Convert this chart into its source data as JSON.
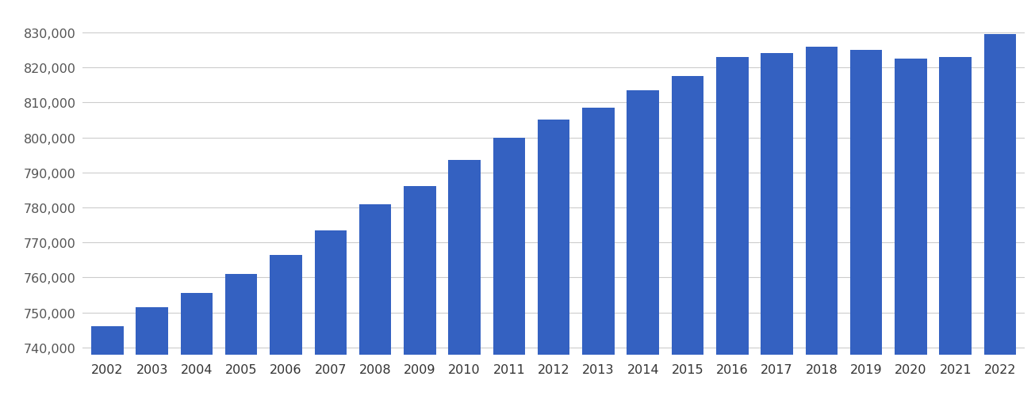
{
  "years": [
    2002,
    2003,
    2004,
    2005,
    2006,
    2007,
    2008,
    2009,
    2010,
    2011,
    2012,
    2013,
    2014,
    2015,
    2016,
    2017,
    2018,
    2019,
    2020,
    2021,
    2022
  ],
  "values": [
    746000,
    751500,
    755500,
    761000,
    766500,
    773500,
    781000,
    786000,
    793500,
    800000,
    805000,
    808500,
    813500,
    817500,
    823000,
    824000,
    826000,
    825000,
    822500,
    823000,
    829500
  ],
  "bar_color": "#3461c1",
  "background_color": "#ffffff",
  "ylim_min": 738000,
  "ylim_max": 836000,
  "ytick_step": 10000,
  "ytick_min": 740000,
  "ytick_max": 830000,
  "grid_color": "#cccccc",
  "tick_label_color": "#555555",
  "x_tick_label_color": "#333333",
  "tick_fontsize": 11.5,
  "bar_width": 0.72
}
